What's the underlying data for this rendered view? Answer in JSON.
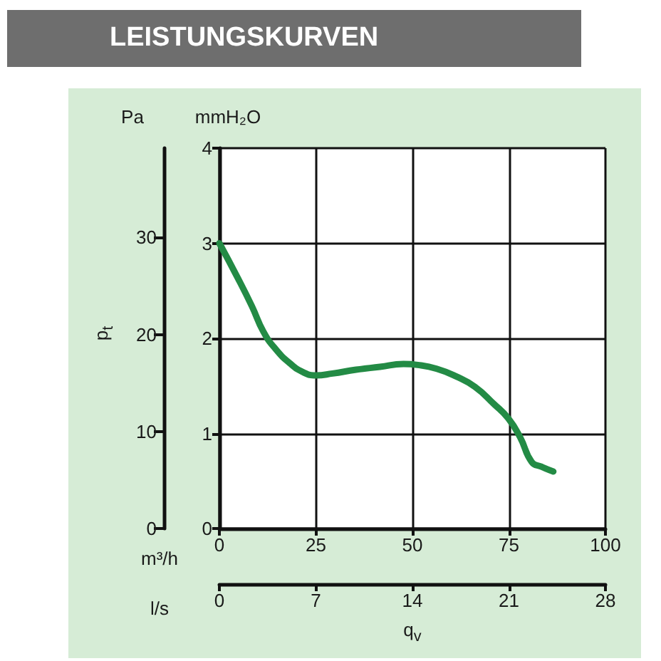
{
  "chart_data": {
    "type": "line",
    "title": "LEISTUNGSKURVEN",
    "xlabel": "m³/h",
    "x2label": "l/s",
    "ylabel": "mmH₂O",
    "y2label": "Pa",
    "annotations": [
      "p$_{t}$",
      "q$_{v}$"
    ],
    "x": [
      0,
      4.7,
      8.4,
      11.4,
      14.5,
      18.2,
      21.9,
      25,
      29.3,
      35.4,
      41.6,
      47.7,
      51.4,
      56.3,
      61.3,
      66.2,
      71.1,
      74.8,
      77.9,
      80.9,
      83.4,
      86.5
    ],
    "series": [
      {
        "color": "#238b45",
        "values": [
          3.0,
          2.64,
          2.34,
          2.07,
          1.89,
          1.74,
          1.64,
          1.61,
          1.63,
          1.67,
          1.7,
          1.73,
          1.72,
          1.68,
          1.6,
          1.49,
          1.31,
          1.16,
          0.96,
          0.7,
          0.65,
          0.6
        ]
      }
    ],
    "xlim": [
      0,
      100
    ],
    "xticks": [
      0,
      25,
      50,
      75,
      100
    ],
    "x2lim": [
      0,
      28
    ],
    "x2ticks": [
      0,
      7,
      14,
      21,
      28
    ],
    "ylim": [
      0,
      4
    ],
    "yticks": [
      0,
      1,
      2,
      3,
      4
    ],
    "y2lim": [
      0,
      39.2
    ],
    "y2ticks": [
      0,
      10,
      20,
      30
    ],
    "grid": true,
    "marker": "none",
    "line_style": "solid"
  }
}
